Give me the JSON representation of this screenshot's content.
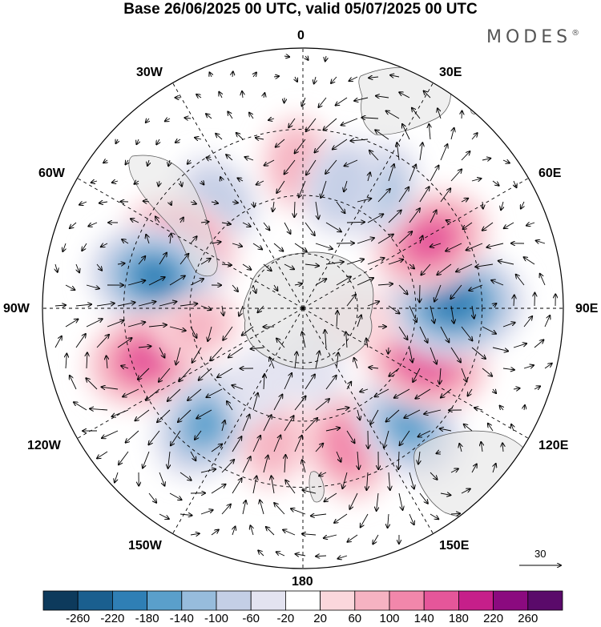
{
  "title": "Base 26/06/2025 00 UTC, valid 05/07/2025 00 UTC",
  "brand": {
    "name": "MODES",
    "mark": "®"
  },
  "longitude_labels": {
    "lon_0": "0",
    "lon_30e": "30E",
    "lon_60e": "60E",
    "lon_90e": "90E",
    "lon_120e": "120E",
    "lon_150e": "150E",
    "lon_180": "180",
    "lon_150w": "150W",
    "lon_120w": "120W",
    "lon_90w": "90W",
    "lon_60w": "60W",
    "lon_30w": "30W"
  },
  "vector_scale": {
    "label": "30"
  },
  "colorbar": {
    "labels": [
      "-260",
      "-220",
      "-180",
      "-140",
      "-100",
      "-60",
      "-20",
      "20",
      "60",
      "100",
      "140",
      "180",
      "220",
      "260"
    ],
    "colors": [
      "#0d3a5c",
      "#1a5f8f",
      "#2f7fb5",
      "#5a9fcb",
      "#97bcdc",
      "#c4cfe6",
      "#e3e3f0",
      "#ffffff",
      "#fbd7dc",
      "#f6b3c2",
      "#f287ab",
      "#e5569a",
      "#c61f8a",
      "#8b0a7f",
      "#5a0a6a"
    ]
  },
  "anomaly_centres": [
    {
      "id": "a1",
      "lon": -2,
      "lat": -40,
      "value": 80
    },
    {
      "id": "a2",
      "lon": -38,
      "lat": -42,
      "value": -80
    },
    {
      "id": "a3",
      "lon": -63,
      "lat": -42,
      "value": 140
    },
    {
      "id": "a4",
      "lon": -78,
      "lat": -38,
      "value": -180
    },
    {
      "id": "a5",
      "lon": -108,
      "lat": -34,
      "value": 150
    },
    {
      "id": "a6",
      "lon": -140,
      "lat": -38,
      "value": -140
    },
    {
      "id": "a7",
      "lon": -168,
      "lat": -42,
      "value": 70
    },
    {
      "id": "a8",
      "lon": 162,
      "lat": -40,
      "value": 120
    },
    {
      "id": "a9",
      "lon": 138,
      "lat": -36,
      "value": -140
    },
    {
      "id": "a10",
      "lon": 112,
      "lat": -44,
      "value": 170
    },
    {
      "id": "a11",
      "lon": 88,
      "lat": -38,
      "value": -200
    },
    {
      "id": "a12",
      "lon": 62,
      "lat": -40,
      "value": 150
    },
    {
      "id": "a13",
      "lon": 32,
      "lat": -42,
      "value": -100
    },
    {
      "id": "a14",
      "lon": 18,
      "lat": -45,
      "value": -90
    },
    {
      "id": "a15",
      "lon": -100,
      "lat": -52,
      "value": 60
    },
    {
      "id": "a16",
      "lon": 102,
      "lat": -70,
      "value": 50
    },
    {
      "id": "a17",
      "lon": -150,
      "lat": -58,
      "value": -50
    },
    {
      "id": "a18",
      "lon": 170,
      "lat": -68,
      "value": -40
    }
  ]
}
